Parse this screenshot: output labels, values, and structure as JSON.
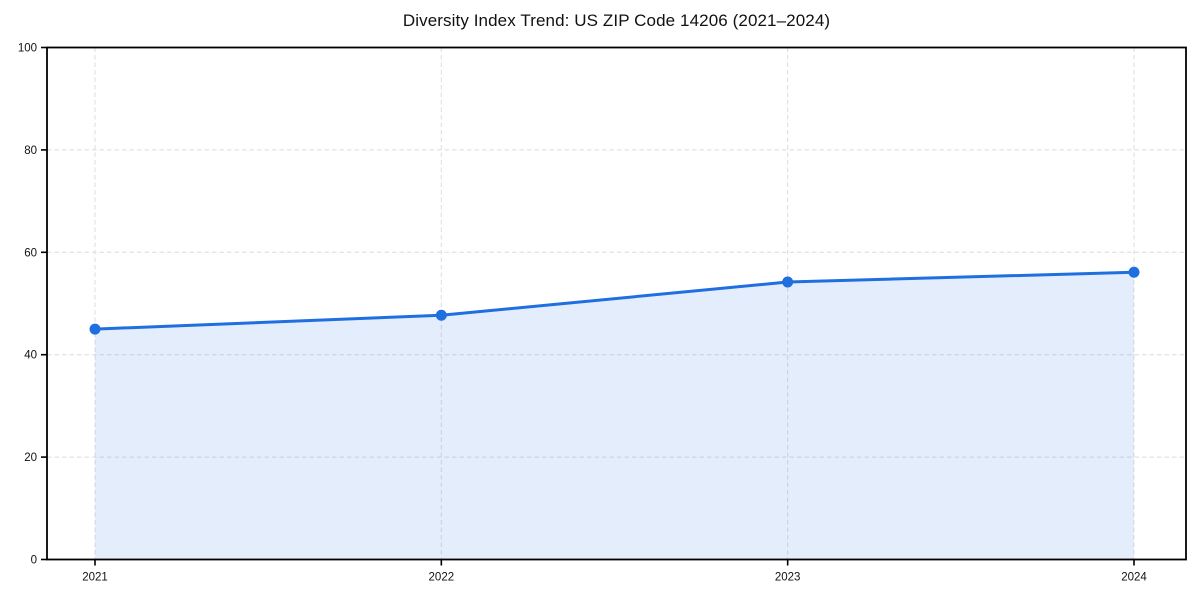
{
  "page": {
    "background": "#ffffff"
  },
  "chart_data": {
    "type": "line",
    "title": "Diversity Index Trend: US ZIP Code 14206 (2021–2024)",
    "x": [
      "2021",
      "2022",
      "2023",
      "2024"
    ],
    "series": [
      {
        "name": "Diversity Index",
        "values": [
          45.0,
          47.7,
          54.2,
          56.1
        ]
      }
    ],
    "xlabel": "",
    "ylabel": "",
    "ylim": [
      0,
      100
    ],
    "yticks": [
      0,
      20,
      40,
      60,
      80,
      100
    ],
    "ytick_labels": [
      "0",
      "20",
      "40",
      "60",
      "80",
      "100"
    ],
    "grid": true,
    "grid_style": "dashed",
    "legend_position": "none",
    "area_fill": true,
    "marker": "circle",
    "colors": {
      "line": "#1f6fe0",
      "marker": "#1f6fe0",
      "area_fill": "rgba(31,111,224,0.12)",
      "grid": "#dcdcdc",
      "axis": "#000000",
      "text": "#111111"
    }
  }
}
